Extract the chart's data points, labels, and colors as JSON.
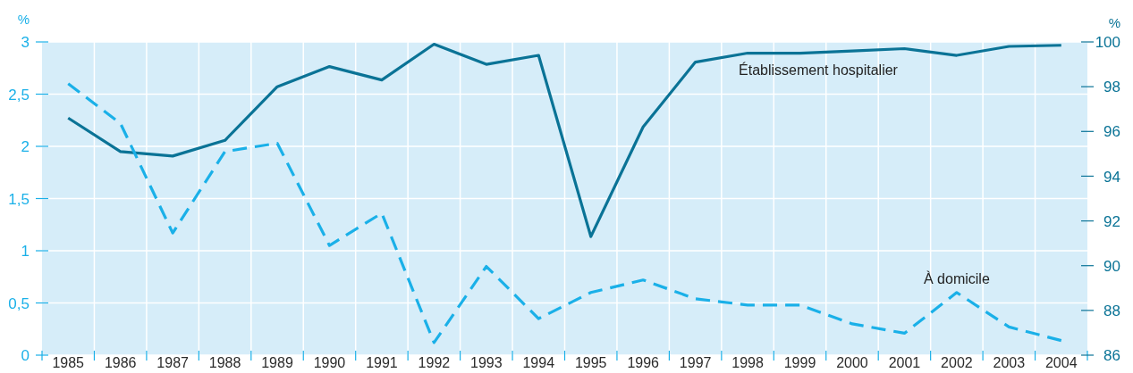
{
  "chart_data": {
    "type": "line",
    "categories": [
      "1985",
      "1986",
      "1987",
      "1988",
      "1989",
      "1990",
      "1991",
      "1992",
      "1993",
      "1994",
      "1995",
      "1996",
      "1997",
      "1998",
      "1999",
      "2000",
      "2001",
      "2002",
      "2003",
      "2004"
    ],
    "ylabel": "%",
    "y2label": "%",
    "ylim": [
      0,
      3
    ],
    "yticks": [
      0,
      {
        "value": 0.5,
        "label": "0,5"
      },
      1,
      {
        "value": 1.5,
        "label": "1,5"
      },
      2,
      {
        "value": 2.5,
        "label": "2,5"
      },
      3
    ],
    "y2lim": [
      86,
      100
    ],
    "y2ticks": [
      86,
      88,
      90,
      92,
      94,
      96,
      98,
      100
    ],
    "grid": true,
    "series": [
      {
        "name": "Établissement hospitalier",
        "color": "#0a7396",
        "axis": "y2",
        "line_style": "solid",
        "values": [
          96.6,
          95.1,
          94.9,
          95.6,
          98.0,
          98.9,
          98.3,
          99.9,
          99.0,
          99.4,
          91.3,
          96.2,
          99.1,
          99.5,
          99.5,
          99.6,
          99.7,
          99.4,
          99.8,
          99.85
        ]
      },
      {
        "name": "À domicile",
        "color": "#1ab0e8",
        "axis": "y",
        "line_style": "dashed",
        "values": [
          2.6,
          2.22,
          1.17,
          1.95,
          2.03,
          1.05,
          1.36,
          0.12,
          0.85,
          0.35,
          0.6,
          0.72,
          0.54,
          0.48,
          0.48,
          0.3,
          0.21,
          0.6,
          0.27,
          0.14
        ]
      }
    ]
  }
}
